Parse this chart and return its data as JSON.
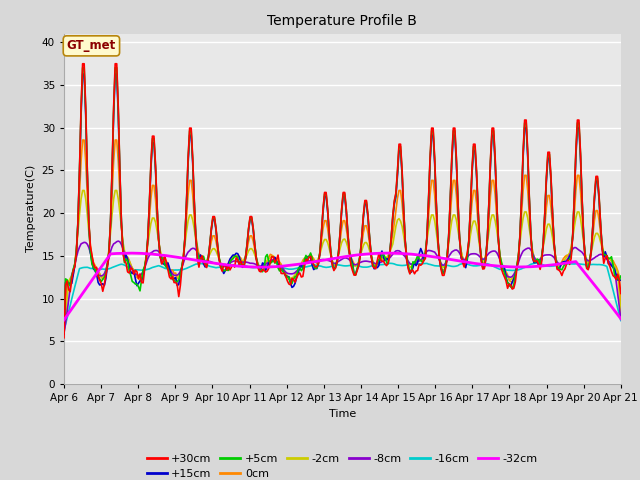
{
  "title": "Temperature Profile B",
  "xlabel": "Time",
  "ylabel": "Temperature(C)",
  "ylim": [
    0,
    41
  ],
  "yticks": [
    0,
    5,
    10,
    15,
    20,
    25,
    30,
    35,
    40
  ],
  "x_labels": [
    "Apr 6",
    "Apr 7",
    "Apr 8",
    "Apr 9",
    "Apr 10",
    "Apr 11",
    "Apr 12",
    "Apr 13",
    "Apr 14",
    "Apr 15",
    "Apr 16",
    "Apr 17",
    "Apr 18",
    "Apr 19",
    "Apr 20",
    "Apr 21"
  ],
  "annotation_text": "GT_met",
  "series_colors": {
    "+30cm": "#ff0000",
    "+15cm": "#0000cc",
    "+5cm": "#00cc00",
    "0cm": "#ff8800",
    "-2cm": "#cccc00",
    "-8cm": "#8800cc",
    "-16cm": "#00cccc",
    "-32cm": "#ff00ff"
  },
  "series_lw": {
    "+30cm": 1.2,
    "+15cm": 1.2,
    "+5cm": 1.2,
    "0cm": 1.2,
    "-2cm": 1.2,
    "-8cm": 1.2,
    "-16cm": 1.2,
    "-32cm": 2.0
  },
  "fig_bg_color": "#d8d8d8",
  "plot_bg_color": "#e8e8e8"
}
